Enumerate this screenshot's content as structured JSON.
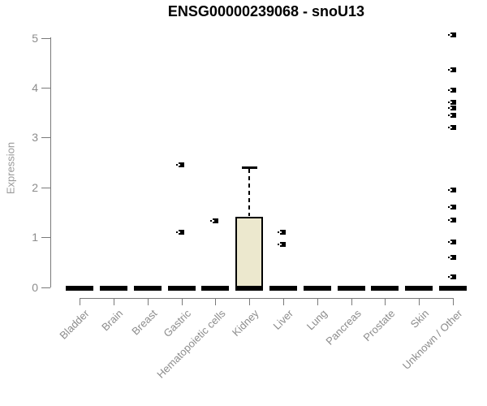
{
  "chart_data": {
    "type": "boxplot",
    "title": "ENSG00000239068 - snoU13",
    "ylabel": "Expression",
    "xlabel": "",
    "ylim": [
      0,
      5
    ],
    "yticks": [
      0,
      1,
      2,
      3,
      4,
      5
    ],
    "grid": false,
    "legend": false,
    "colors": {
      "box_fill": "#ECE8CE",
      "box_line": "#000000",
      "axis_line": "#7a7a7a",
      "tick_label": "#8c8c8c",
      "axis_title": "#999999",
      "title_text": "#000000"
    },
    "categories": [
      "Bladder",
      "Brain",
      "Breast",
      "Gastric",
      "Hematopoietic cells",
      "Kidney",
      "Liver",
      "Lung",
      "Pancreas",
      "Prostate",
      "Skin",
      "Unknown / Other"
    ],
    "series": [
      {
        "category": "Bladder",
        "low": 0,
        "q1": 0,
        "median": 0,
        "q3": 0,
        "high": 0,
        "outliers": []
      },
      {
        "category": "Brain",
        "low": 0,
        "q1": 0,
        "median": 0,
        "q3": 0,
        "high": 0,
        "outliers": []
      },
      {
        "category": "Breast",
        "low": 0,
        "q1": 0,
        "median": 0,
        "q3": 0,
        "high": 0,
        "outliers": []
      },
      {
        "category": "Gastric",
        "low": 0,
        "q1": 0,
        "median": 0,
        "q3": 0,
        "high": 0,
        "outliers": [
          2.45,
          1.1
        ]
      },
      {
        "category": "Hematopoietic cells",
        "low": 0,
        "q1": 0,
        "median": 0,
        "q3": 0,
        "high": 0,
        "outliers": [
          1.33
        ]
      },
      {
        "category": "Kidney",
        "low": 0,
        "q1": 0,
        "median": 0,
        "q3": 1.4,
        "high": 2.4,
        "outliers": []
      },
      {
        "category": "Liver",
        "low": 0,
        "q1": 0,
        "median": 0,
        "q3": 0,
        "high": 0,
        "outliers": [
          1.1,
          0.85
        ]
      },
      {
        "category": "Lung",
        "low": 0,
        "q1": 0,
        "median": 0,
        "q3": 0,
        "high": 0,
        "outliers": []
      },
      {
        "category": "Pancreas",
        "low": 0,
        "q1": 0,
        "median": 0,
        "q3": 0,
        "high": 0,
        "outliers": []
      },
      {
        "category": "Prostate",
        "low": 0,
        "q1": 0,
        "median": 0,
        "q3": 0,
        "high": 0,
        "outliers": []
      },
      {
        "category": "Skin",
        "low": 0,
        "q1": 0,
        "median": 0,
        "q3": 0,
        "high": 0,
        "outliers": []
      },
      {
        "category": "Unknown / Other",
        "low": 0,
        "q1": 0,
        "median": 0,
        "q3": 0,
        "high": 0,
        "outliers": [
          5.05,
          4.35,
          3.95,
          3.7,
          3.6,
          3.45,
          3.2,
          1.95,
          1.6,
          1.35,
          0.9,
          0.6,
          0.2
        ]
      }
    ]
  }
}
